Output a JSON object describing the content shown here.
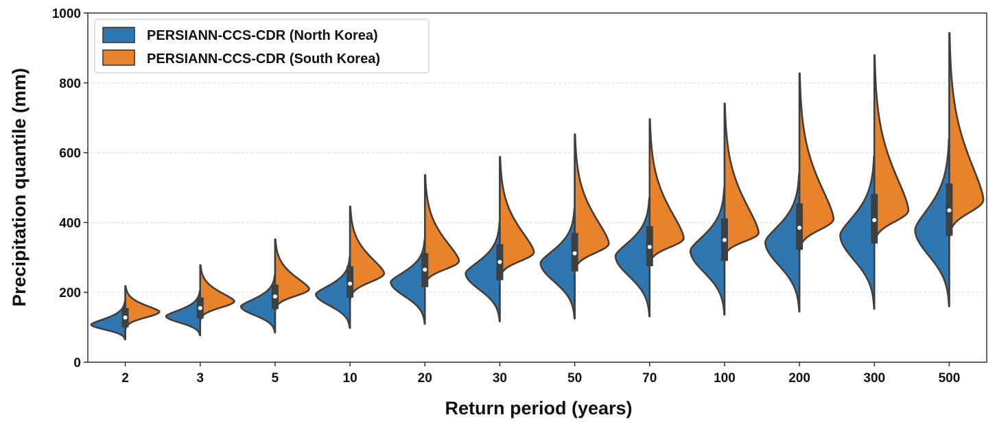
{
  "chart_data": {
    "type": "violin-split",
    "xlabel": "Return period (years)",
    "ylabel": "Precipitation quantile (mm)",
    "ylim": [
      0,
      1000
    ],
    "yticks": [
      0,
      200,
      400,
      600,
      800,
      1000
    ],
    "categories": [
      "2",
      "3",
      "5",
      "10",
      "20",
      "30",
      "50",
      "70",
      "100",
      "200",
      "300",
      "500"
    ],
    "grid": "horizontal-dashed",
    "legend_position": "top-left",
    "series": [
      {
        "name": "PERSIANN-CCS-CDR (North Korea)",
        "color": "#2e77b0",
        "side": "left",
        "min": [
          65,
          77,
          85,
          98,
          110,
          117,
          125,
          131,
          136,
          145,
          153,
          160
        ],
        "mode": [
          108,
          132,
          160,
          195,
          230,
          255,
          285,
          305,
          320,
          345,
          365,
          380
        ],
        "max": [
          175,
          205,
          250,
          300,
          350,
          400,
          440,
          470,
          500,
          540,
          590,
          640
        ]
      },
      {
        "name": "PERSIANN-CCS-CDR (South Korea)",
        "color": "#e8822b",
        "side": "right",
        "min": [
          95,
          120,
          150,
          180,
          220,
          240,
          260,
          280,
          300,
          320,
          340,
          360
        ],
        "mode": [
          145,
          175,
          210,
          255,
          290,
          315,
          340,
          355,
          370,
          410,
          435,
          465
        ],
        "max": [
          218,
          278,
          352,
          446,
          536,
          588,
          653,
          696,
          741,
          827,
          879,
          943
        ]
      }
    ],
    "box": {
      "median": [
        128,
        155,
        188,
        225,
        265,
        287,
        312,
        330,
        350,
        385,
        407,
        435
      ],
      "q1": [
        100,
        125,
        152,
        185,
        215,
        235,
        260,
        275,
        290,
        322,
        340,
        362
      ],
      "q3": [
        155,
        185,
        222,
        275,
        312,
        338,
        370,
        390,
        412,
        455,
        482,
        512
      ]
    }
  }
}
